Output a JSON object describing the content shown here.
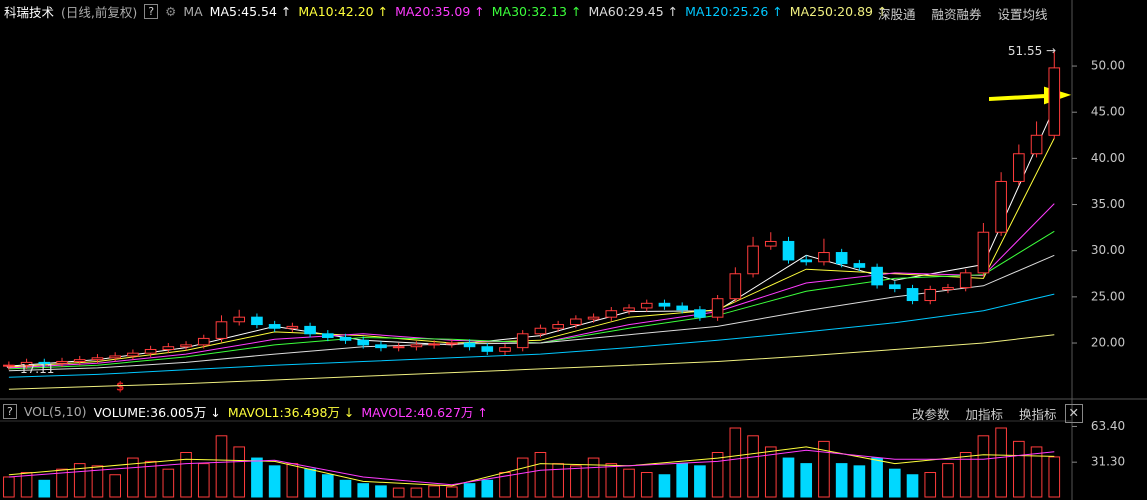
{
  "chart_data": [
    {
      "type": "candlestick",
      "title": "科瑞技术",
      "subtitle": "(日线,前复权)",
      "help": "?",
      "indicator": "MA",
      "menu": [
        "深股通",
        "融资融券",
        "设置均线"
      ],
      "open": [
        17.5,
        17.6,
        17.9,
        17.8,
        18.0,
        18.2,
        18.4,
        18.6,
        18.9,
        19.3,
        19.6,
        19.8,
        20.5,
        22.3,
        22.8,
        22.0,
        21.6,
        21.8,
        21.0,
        20.6,
        20.3,
        19.8,
        19.5,
        19.6,
        19.8,
        19.9,
        20.0,
        19.6,
        19.1,
        19.5,
        21.0,
        21.6,
        22.0,
        22.6,
        22.8,
        23.5,
        23.8,
        24.3,
        24.0,
        23.6,
        22.8,
        24.8,
        27.5,
        30.5,
        31.0,
        29.0,
        28.8,
        29.8,
        28.6,
        28.2,
        26.3,
        25.9,
        24.6,
        25.8,
        26.0,
        27.6,
        32.0,
        37.5,
        40.5,
        42.5
      ],
      "high": [
        18.0,
        18.3,
        18.3,
        18.4,
        18.6,
        18.8,
        19.0,
        19.3,
        19.7,
        20.0,
        20.2,
        20.9,
        23.0,
        23.6,
        23.2,
        22.4,
        22.2,
        22.2,
        21.4,
        21.0,
        20.7,
        20.2,
        20.0,
        20.2,
        20.3,
        20.4,
        20.4,
        20.0,
        19.9,
        21.4,
        22.0,
        22.4,
        23.0,
        23.2,
        23.9,
        24.2,
        24.7,
        24.7,
        24.4,
        24.0,
        25.2,
        28.2,
        31.5,
        32.0,
        31.5,
        29.5,
        31.3,
        30.2,
        29.0,
        28.6,
        26.7,
        26.3,
        26.2,
        26.4,
        28.0,
        33.0,
        38.5,
        41.5,
        44.0,
        51.55
      ],
      "low": [
        17.11,
        17.2,
        17.4,
        17.4,
        17.6,
        17.8,
        18.0,
        18.2,
        18.5,
        18.9,
        19.2,
        19.4,
        20.1,
        21.9,
        21.6,
        21.2,
        21.2,
        20.6,
        20.2,
        19.9,
        19.4,
        19.1,
        19.1,
        19.2,
        19.4,
        19.5,
        19.2,
        18.7,
        18.7,
        19.1,
        20.6,
        21.2,
        21.6,
        22.2,
        22.4,
        23.1,
        23.4,
        23.6,
        23.2,
        22.4,
        22.4,
        24.4,
        27.1,
        30.1,
        28.6,
        28.4,
        28.4,
        28.2,
        27.8,
        25.9,
        25.5,
        24.2,
        24.2,
        25.4,
        25.6,
        27.2,
        31.6,
        37.1,
        40.1,
        42.1
      ],
      "close": [
        17.6,
        17.9,
        17.8,
        18.0,
        18.2,
        18.4,
        18.6,
        18.9,
        19.3,
        19.6,
        19.8,
        20.5,
        22.3,
        22.8,
        22.0,
        21.6,
        21.8,
        21.0,
        20.6,
        20.3,
        19.8,
        19.5,
        19.6,
        19.8,
        19.9,
        20.0,
        19.6,
        19.1,
        19.5,
        21.0,
        21.6,
        22.0,
        22.6,
        22.8,
        23.5,
        23.8,
        24.3,
        24.0,
        23.6,
        22.8,
        24.8,
        27.5,
        30.5,
        31.0,
        29.0,
        28.8,
        29.8,
        28.6,
        28.2,
        26.3,
        25.9,
        24.6,
        25.8,
        26.0,
        27.6,
        32.0,
        37.5,
        40.5,
        42.5,
        49.8
      ],
      "up_color": "#ff3c3c",
      "down_color": "#00d8ff",
      "series": [
        {
          "name": "MA5:45.54 ↑",
          "color": "#ffffff",
          "x": [
            0,
            5,
            10,
            15,
            20,
            25,
            30,
            35,
            40,
            45,
            50,
            55,
            59
          ],
          "values": [
            17.5,
            18.2,
            19.5,
            21.8,
            20.3,
            19.8,
            20.8,
            23.4,
            23.5,
            29.5,
            26.8,
            28.5,
            45.5
          ]
        },
        {
          "name": "MA10:42.20 ↑",
          "color": "#ffff3c",
          "x": [
            0,
            5,
            10,
            15,
            20,
            25,
            30,
            35,
            40,
            45,
            50,
            55,
            59
          ],
          "values": [
            17.4,
            18.0,
            19.2,
            21.2,
            20.8,
            20.0,
            20.3,
            22.8,
            23.6,
            28,
            27.5,
            27,
            42.2
          ]
        },
        {
          "name": "MA20:35.09 ↑",
          "color": "#ff3cff",
          "x": [
            0,
            5,
            10,
            15,
            20,
            25,
            30,
            35,
            40,
            45,
            50,
            55,
            59
          ],
          "values": [
            17.3,
            17.8,
            18.8,
            20.4,
            21.0,
            20.3,
            20.0,
            22.0,
            23.4,
            26.5,
            27.6,
            27.3,
            35.1
          ]
        },
        {
          "name": "MA30:32.13 ↑",
          "color": "#3cff3c",
          "x": [
            0,
            5,
            10,
            15,
            20,
            25,
            30,
            35,
            40,
            45,
            50,
            55,
            59
          ],
          "values": [
            17.2,
            17.6,
            18.5,
            19.8,
            20.6,
            20.4,
            20.0,
            21.6,
            23.0,
            25.6,
            27.0,
            27.4,
            32.1
          ]
        },
        {
          "name": "MA60:29.45 ↑",
          "color": "#dcdcdc",
          "x": [
            0,
            5,
            10,
            15,
            20,
            25,
            30,
            35,
            40,
            45,
            50,
            55,
            59
          ],
          "values": [
            17.0,
            17.3,
            17.9,
            18.8,
            19.6,
            19.9,
            20.0,
            20.9,
            21.8,
            23.5,
            25.0,
            26.2,
            29.5
          ]
        },
        {
          "name": "MA120:25.26 ↑",
          "color": "#00c8ff",
          "x": [
            0,
            5,
            10,
            15,
            20,
            25,
            30,
            35,
            40,
            45,
            50,
            55,
            59
          ],
          "values": [
            16.3,
            16.6,
            17.1,
            17.6,
            18.0,
            18.4,
            18.8,
            19.5,
            20.3,
            21.2,
            22.2,
            23.5,
            25.3
          ]
        },
        {
          "name": "MA250:20.89 ↑",
          "color": "#f0f080",
          "x": [
            0,
            5,
            10,
            15,
            20,
            25,
            30,
            35,
            40,
            45,
            50,
            55,
            59
          ],
          "values": [
            15.0,
            15.3,
            15.6,
            16.0,
            16.4,
            16.8,
            17.2,
            17.6,
            18.0,
            18.6,
            19.3,
            20.0,
            20.9
          ]
        }
      ],
      "xlim": [
        -0.5,
        60
      ],
      "ylim": [
        14.37,
        54.77
      ],
      "yticks": [
        {
          "value": 20,
          "label": "20.00"
        },
        {
          "value": 25,
          "label": "25.00"
        },
        {
          "value": 30,
          "label": "30.00"
        },
        {
          "value": 35,
          "label": "35.00"
        },
        {
          "value": 40,
          "label": "40.00"
        },
        {
          "value": 45,
          "label": "45.00"
        },
        {
          "value": 50,
          "label": "50.00"
        }
      ],
      "high_label": 51.55,
      "low_label": 17.11,
      "marker": "$"
    },
    {
      "type": "bar",
      "title": "VOL(5,10)",
      "help": "?",
      "volume_label": "VOLUME:36.005万 ↓",
      "menu": [
        "改参数",
        "加指标",
        "换指标"
      ],
      "values": [
        18,
        22,
        15,
        25,
        30,
        28,
        20,
        35,
        32,
        25,
        40,
        30,
        55,
        45,
        35,
        28,
        30,
        25,
        20,
        15,
        12,
        10,
        8,
        8,
        10,
        9,
        12,
        15,
        22,
        35,
        40,
        30,
        28,
        35,
        30,
        25,
        22,
        20,
        30,
        28,
        40,
        62,
        55,
        45,
        35,
        30,
        50,
        30,
        28,
        35,
        25,
        20,
        22,
        30,
        40,
        55,
        62,
        50,
        45,
        36.005
      ],
      "series": [
        {
          "name": "MAVOL1:36.498万 ↓",
          "color": "#ffff3c",
          "x": [
            0,
            5,
            10,
            15,
            20,
            25,
            30,
            35,
            40,
            45,
            50,
            55,
            59
          ],
          "values": [
            20,
            27,
            34,
            32,
            14,
            10,
            30,
            28,
            35,
            45,
            30,
            38,
            36.498
          ]
        },
        {
          "name": "MAVOL2:40.627万 ↑",
          "color": "#ff3cff",
          "x": [
            0,
            5,
            10,
            15,
            20,
            25,
            30,
            35,
            40,
            45,
            50,
            55,
            59
          ],
          "values": [
            18,
            24,
            30,
            33,
            18,
            11,
            24,
            28,
            32,
            42,
            34,
            34,
            40.627
          ]
        }
      ],
      "xlim": [
        -0.5,
        60
      ],
      "ylim": [
        0,
        68.3
      ],
      "yticks": [
        {
          "value": 31.3,
          "label": "31.30"
        },
        {
          "value": 63.4,
          "label": "63.40"
        }
      ]
    }
  ]
}
